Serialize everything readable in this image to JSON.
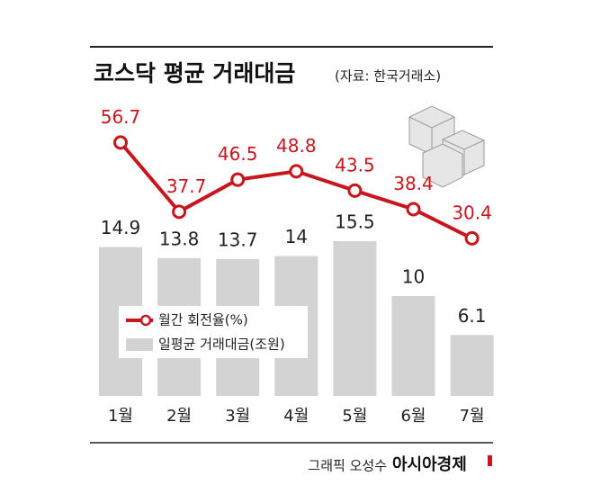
{
  "chart_data": {
    "type": "combo",
    "title": "코스닥 평균 거래대금",
    "subtitle": "(자료: 한국거래소)",
    "categories": [
      "1월",
      "2월",
      "3월",
      "4월",
      "5월",
      "6월",
      "7월"
    ],
    "series": [
      {
        "name": "월간 회전율(%)",
        "type": "line",
        "color": "#c8161e",
        "values": [
          56.7,
          37.7,
          46.5,
          48.8,
          43.5,
          38.4,
          30.4
        ]
      },
      {
        "name": "일평균 거래대금(조원)",
        "type": "bar",
        "color": "#d3d3d3",
        "values": [
          14.9,
          13.8,
          13.7,
          14.0,
          15.5,
          10.0,
          6.1
        ]
      }
    ],
    "credit": "그래픽 오성수",
    "publisher": "아시아경제"
  }
}
